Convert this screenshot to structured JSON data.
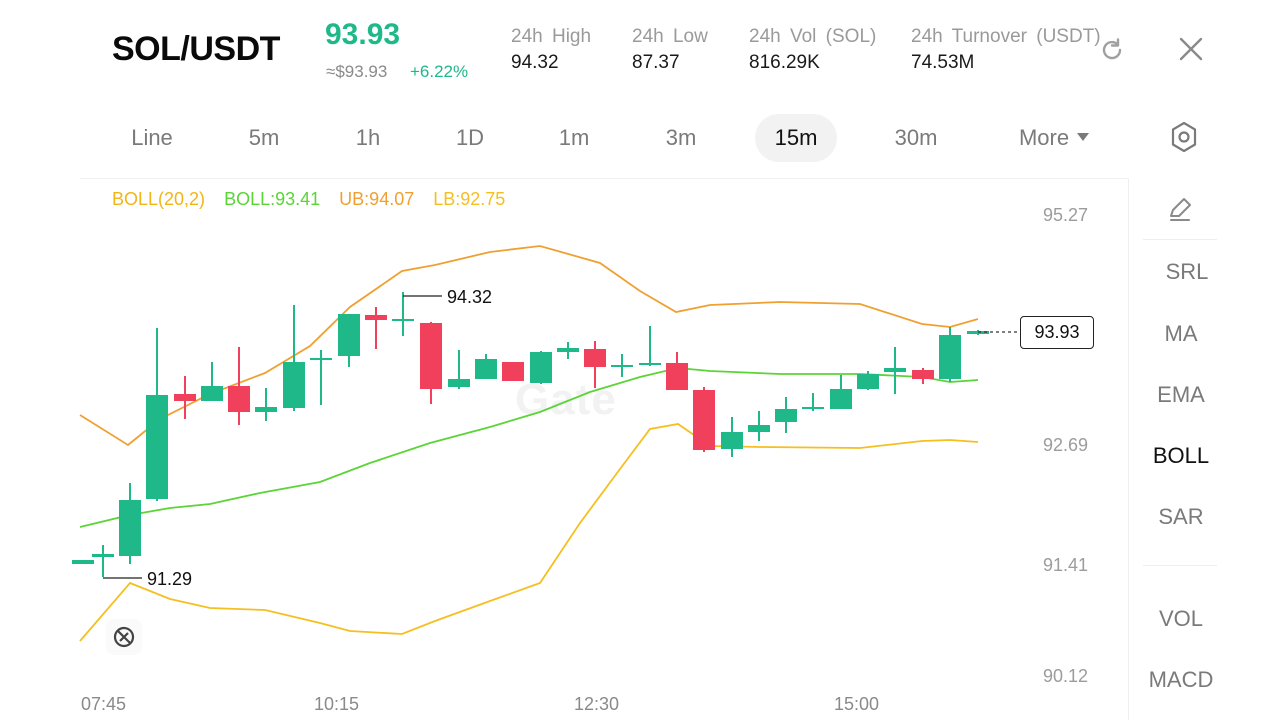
{
  "header": {
    "pair": "SOL/USDT",
    "price": "93.93",
    "usd_approx": "≈$93.93",
    "change": "+6.22%",
    "stats": [
      {
        "label": "24h  High",
        "value": "94.32"
      },
      {
        "label": "24h  Low",
        "value": "87.37"
      },
      {
        "label": "24h  Vol (SOL)",
        "value": "816.29K"
      },
      {
        "label": "24h  Turnover (USDT)",
        "value": "74.53M"
      }
    ]
  },
  "toolbar": {
    "timeframes": [
      "Line",
      "5m",
      "1h",
      "1D",
      "1m",
      "3m",
      "15m",
      "30m"
    ],
    "active": "15m",
    "more_label": "More"
  },
  "legend": {
    "boll": "BOLL(20,2)",
    "mid": "BOLL:93.41",
    "ub": "UB:94.07",
    "lb": "LB:92.75"
  },
  "side_menu": {
    "main_indicators": [
      "SRL",
      "MA",
      "EMA",
      "BOLL",
      "SAR"
    ],
    "active": "BOLL",
    "sub_indicators": [
      "VOL",
      "MACD"
    ]
  },
  "axis": {
    "price_ticks": [
      "95.27",
      "92.69",
      "91.41",
      "90.12"
    ],
    "time_ticks": [
      "07:45",
      "10:15",
      "12:30",
      "15:00"
    ],
    "high_marker": "94.32",
    "low_marker": "91.29",
    "current_price": "93.93"
  },
  "colors": {
    "up": "#1fb889",
    "down": "#f0405b",
    "boll_label": "#f2b516",
    "mid": "#5bd438",
    "ub": "#f0a030",
    "lb": "#f5bf20"
  },
  "watermark": "Gate"
}
